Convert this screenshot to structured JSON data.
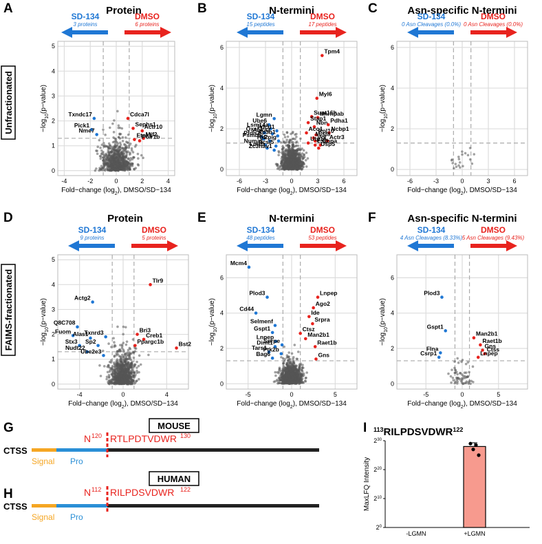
{
  "panel_letters": [
    "A",
    "B",
    "C",
    "D",
    "E",
    "F",
    "G",
    "H",
    "I"
  ],
  "row_labels": {
    "top": "Unfractionated",
    "bottom": "FAIMS-fractionated"
  },
  "axis": {
    "x_label": "Fold−change (log",
    "x_label_sub": "2",
    "x_label_tail": "), DMSO/SD−134",
    "y_label_a": "−log",
    "y_label_sub": "10",
    "y_label_tail": "(p−value)"
  },
  "arrows": {
    "left": "SD-134",
    "right": "DMSO"
  },
  "colors": {
    "blue": "#1f77d4",
    "red": "#e8231e",
    "grey": "#444444",
    "signal": "#f5a623",
    "pro": "#2a8fd6",
    "bar": "#f79a8e"
  },
  "chart_data": [
    {
      "id": "A",
      "type": "scatter",
      "title": "Protein",
      "left_sub": "3 proteins",
      "right_sub": "6 proteins",
      "xlim": [
        -4.5,
        4.5
      ],
      "ylim": [
        -0.2,
        5.2
      ],
      "xticks": [
        -4,
        -2,
        0,
        2,
        4
      ],
      "yticks": [
        0,
        1,
        2,
        3,
        4,
        5
      ],
      "vlines": [
        -1,
        1
      ],
      "hline": 1.3,
      "labeled": [
        {
          "name": "Txndc17",
          "x": -1.7,
          "y": 2.1,
          "c": "b"
        },
        {
          "name": "Pick1",
          "x": -1.9,
          "y": 1.65,
          "c": "b"
        },
        {
          "name": "Nme7",
          "x": -1.5,
          "y": 1.45,
          "c": "b"
        },
        {
          "name": "Cdca7l",
          "x": 0.9,
          "y": 2.1,
          "c": "r"
        },
        {
          "name": "Sephs1",
          "x": 1.3,
          "y": 1.7,
          "c": "r"
        },
        {
          "name": "Actr10",
          "x": 2.0,
          "y": 1.6,
          "c": "r"
        },
        {
          "name": "Mif2",
          "x": 2.1,
          "y": 1.3,
          "c": "r"
        },
        {
          "name": "Etnk1",
          "x": 1.4,
          "y": 1.25,
          "c": "r"
        },
        {
          "name": "Polr1b",
          "x": 1.8,
          "y": 1.2,
          "c": "r"
        }
      ]
    },
    {
      "id": "B",
      "type": "scatter",
      "title": "N-termini",
      "left_sub": "15 peptides",
      "right_sub": "17 peptides",
      "xlim": [
        -7.5,
        7.5
      ],
      "ylim": [
        -0.3,
        6.3
      ],
      "xticks": [
        -6,
        -3,
        0,
        3,
        6
      ],
      "yticks": [
        0,
        2,
        4,
        6
      ],
      "vlines": [
        -1,
        1
      ],
      "hline": 1.3,
      "labeled": [
        {
          "name": "Tpm4",
          "x": 3.5,
          "y": 5.6,
          "c": "r"
        },
        {
          "name": "Myl6",
          "x": 2.9,
          "y": 3.5,
          "c": "r"
        },
        {
          "name": "Supt16h",
          "x": 2.3,
          "y": 2.6,
          "c": "r"
        },
        {
          "name": "Hnrnpab",
          "x": 3.0,
          "y": 2.55,
          "c": "r"
        },
        {
          "name": "Stap1",
          "x": 1.9,
          "y": 2.3,
          "c": "r"
        },
        {
          "name": "Nbn",
          "x": 2.6,
          "y": 2.1,
          "c": "r"
        },
        {
          "name": "Pdha1",
          "x": 4.2,
          "y": 2.2,
          "c": "r"
        },
        {
          "name": "Aco1",
          "x": 1.7,
          "y": 1.8,
          "c": "r"
        },
        {
          "name": "Rpl10",
          "x": 2.8,
          "y": 1.7,
          "c": "r"
        },
        {
          "name": "Ncbp1",
          "x": 4.3,
          "y": 1.8,
          "c": "r"
        },
        {
          "name": "Mlst8",
          "x": 2.5,
          "y": 1.55,
          "c": "r"
        },
        {
          "name": "Vcl",
          "x": 2.7,
          "y": 1.4,
          "c": "r"
        },
        {
          "name": "Actr3",
          "x": 4.1,
          "y": 1.4,
          "c": "r"
        },
        {
          "name": "Utp15",
          "x": 1.9,
          "y": 1.3,
          "c": "r"
        },
        {
          "name": "Esd",
          "x": 2.7,
          "y": 1.2,
          "c": "r"
        },
        {
          "name": "Copa",
          "x": 3.3,
          "y": 1.2,
          "c": "r"
        },
        {
          "name": "Usp5",
          "x": 3.1,
          "y": 1.05,
          "c": "r"
        },
        {
          "name": "Lgmn",
          "x": -2.0,
          "y": 2.5,
          "c": "b"
        },
        {
          "name": "Ube6",
          "x": -2.6,
          "y": 2.2,
          "c": "b"
        },
        {
          "name": "Lsm14a",
          "x": -2.4,
          "y": 2.0,
          "c": "b"
        },
        {
          "name": "Pdcd1",
          "x": -1.7,
          "y": 1.9,
          "c": "b"
        },
        {
          "name": "Oxsr1",
          "x": -3.1,
          "y": 1.8,
          "c": "b"
        },
        {
          "name": "Anxa3",
          "x": -2.2,
          "y": 1.75,
          "c": "b"
        },
        {
          "name": "Ap3b1",
          "x": -1.6,
          "y": 1.65,
          "c": "b"
        },
        {
          "name": "Pfdn2",
          "x": -3.4,
          "y": 1.6,
          "c": "b"
        },
        {
          "name": "Psmb8",
          "x": -3.2,
          "y": 1.5,
          "c": "b"
        },
        {
          "name": "Hk2",
          "x": -2.5,
          "y": 1.4,
          "c": "b"
        },
        {
          "name": "Ppig",
          "x": -1.5,
          "y": 1.4,
          "c": "b"
        },
        {
          "name": "Numa1",
          "x": -3.0,
          "y": 1.2,
          "c": "b"
        },
        {
          "name": "Lmna",
          "x": -2.8,
          "y": 1.05,
          "c": "b"
        },
        {
          "name": "Acsl5",
          "x": -1.8,
          "y": 1.15,
          "c": "b"
        },
        {
          "name": "Zc3hav1",
          "x": -2.0,
          "y": 0.95,
          "c": "b"
        }
      ]
    },
    {
      "id": "C",
      "type": "scatter",
      "title": "Asn-specific N-termini",
      "left_sub": "0 Asn Cleavages (0.0%)",
      "right_sub": "0 Asn Cleavages (0.0%)",
      "xlim": [
        -7.5,
        7.5
      ],
      "ylim": [
        -0.3,
        6.3
      ],
      "xticks": [
        -6,
        -3,
        0,
        3,
        6
      ],
      "yticks": [
        0,
        2,
        4,
        6
      ],
      "vlines": [
        -1,
        1
      ],
      "hline": 1.3,
      "labeled": []
    },
    {
      "id": "D",
      "type": "scatter",
      "title": "Protein",
      "left_sub": "9 proteins",
      "right_sub": "5 proteins",
      "xlim": [
        -6,
        6
      ],
      "ylim": [
        -0.2,
        5.2
      ],
      "xticks": [
        -4,
        0,
        4
      ],
      "yticks": [
        0,
        1,
        2,
        3,
        4,
        5
      ],
      "vlines": [
        -1,
        1
      ],
      "hline": 1.3,
      "labeled": [
        {
          "name": "Tlr9",
          "x": 2.5,
          "y": 4.0,
          "c": "r"
        },
        {
          "name": "Actg2",
          "x": -2.8,
          "y": 3.3,
          "c": "b"
        },
        {
          "name": "Q8C708",
          "x": -4.2,
          "y": 2.3,
          "c": "b"
        },
        {
          "name": "Txnrd3",
          "x": -1.6,
          "y": 1.9,
          "c": "b"
        },
        {
          "name": "Fuom",
          "x": -4.6,
          "y": 1.95,
          "c": "b"
        },
        {
          "name": "Alas1",
          "x": -3.0,
          "y": 1.85,
          "c": "b"
        },
        {
          "name": "Stx3",
          "x": -4.0,
          "y": 1.55,
          "c": "b"
        },
        {
          "name": "Sp2",
          "x": -2.3,
          "y": 1.55,
          "c": "b"
        },
        {
          "name": "Nudt22",
          "x": -3.3,
          "y": 1.3,
          "c": "b"
        },
        {
          "name": "Ube2e3",
          "x": -1.8,
          "y": 1.15,
          "c": "b"
        },
        {
          "name": "Bri3",
          "x": 1.3,
          "y": 2.0,
          "c": "r"
        },
        {
          "name": "Creb1",
          "x": 1.9,
          "y": 1.8,
          "c": "r"
        },
        {
          "name": "Bst2",
          "x": 4.9,
          "y": 1.45,
          "c": "r"
        },
        {
          "name": "Ppargc1b",
          "x": 1.1,
          "y": 1.55,
          "c": "r"
        }
      ]
    },
    {
      "id": "E",
      "type": "scatter",
      "title": "N-termini",
      "left_sub": "48 peptides",
      "right_sub": "53 peptides",
      "xlim": [
        -7.5,
        7.5
      ],
      "ylim": [
        -0.3,
        7.3
      ],
      "xticks": [
        -5,
        0,
        5
      ],
      "yticks": [
        0,
        2,
        4,
        6
      ],
      "vlines": [
        -1,
        1
      ],
      "hline": 1.3,
      "labeled": [
        {
          "name": "Mcm4",
          "x": -4.9,
          "y": 6.6,
          "c": "b"
        },
        {
          "name": "Plod3",
          "x": -2.8,
          "y": 4.9,
          "c": "b"
        },
        {
          "name": "Lnpep",
          "x": 3.0,
          "y": 4.9,
          "c": "r"
        },
        {
          "name": "Ago2",
          "x": 2.5,
          "y": 4.3,
          "c": "r"
        },
        {
          "name": "Cd44",
          "x": -4.1,
          "y": 4.0,
          "c": "b"
        },
        {
          "name": "Ide",
          "x": 2.0,
          "y": 3.8,
          "c": "r"
        },
        {
          "name": "Srpra",
          "x": 2.4,
          "y": 3.4,
          "c": "r"
        },
        {
          "name": "Selmenf",
          "x": -1.9,
          "y": 3.3,
          "c": "b"
        },
        {
          "name": "Gspt1",
          "x": -2.2,
          "y": 2.9,
          "c": "b"
        },
        {
          "name": "Ctsz",
          "x": 1.0,
          "y": 2.85,
          "c": "r"
        },
        {
          "name": "Man2b1",
          "x": 1.6,
          "y": 2.55,
          "c": "r"
        },
        {
          "name": "Lnpep",
          "x": -1.8,
          "y": 2.4,
          "c": "b"
        },
        {
          "name": "Dimt1",
          "x": -1.9,
          "y": 2.1,
          "c": "b"
        },
        {
          "name": "Snrpe",
          "x": -1.1,
          "y": 2.2,
          "c": "b"
        },
        {
          "name": "Raet1b",
          "x": 2.7,
          "y": 2.1,
          "c": "r"
        },
        {
          "name": "Tars1",
          "x": -2.6,
          "y": 1.8,
          "c": "b"
        },
        {
          "name": "Ptk2b",
          "x": -1.2,
          "y": 1.7,
          "c": "b"
        },
        {
          "name": "Bag6",
          "x": -2.2,
          "y": 1.45,
          "c": "b"
        },
        {
          "name": "Gns",
          "x": 2.8,
          "y": 1.4,
          "c": "r"
        }
      ]
    },
    {
      "id": "F",
      "type": "scatter",
      "title": "Asn-specific N-termini",
      "left_sub": "4 Asn Cleavages (8.33%)",
      "right_sub": "5 Asn Cleavages (9.43%)",
      "xlim": [
        -9,
        9
      ],
      "ylim": [
        -0.3,
        7.3
      ],
      "xticks": [
        -5,
        0,
        5
      ],
      "yticks": [
        0,
        2,
        4,
        6
      ],
      "vlines": [
        -1,
        1
      ],
      "hline": 1.3,
      "labeled": [
        {
          "name": "Plod3",
          "x": -2.8,
          "y": 4.9,
          "c": "b"
        },
        {
          "name": "Gspt1",
          "x": -2.3,
          "y": 3.0,
          "c": "b"
        },
        {
          "name": "Man2b1",
          "x": 1.6,
          "y": 2.6,
          "c": "r"
        },
        {
          "name": "Raet1b",
          "x": 2.5,
          "y": 2.2,
          "c": "r"
        },
        {
          "name": "Gns",
          "x": 2.8,
          "y": 1.9,
          "c": "r"
        },
        {
          "name": "Ctss",
          "x": 3.1,
          "y": 1.7,
          "c": "r"
        },
        {
          "name": "Flna",
          "x": -3.0,
          "y": 1.75,
          "c": "b"
        },
        {
          "name": "Csrp1",
          "x": -3.2,
          "y": 1.5,
          "c": "b"
        },
        {
          "name": "Lnpep",
          "x": 2.2,
          "y": 1.5,
          "c": "r"
        }
      ]
    },
    {
      "id": "I",
      "type": "bar",
      "title_pre": "113",
      "title": "RILPDSVDWR",
      "title_post": "122",
      "ylabel": "MaxLFQ Intensity",
      "categories": [
        "-LGMN",
        "+LGMN"
      ],
      "values": [
        0,
        28
      ],
      "points": [
        29,
        27,
        28.5,
        25
      ],
      "yscale": "log2",
      "ylim": [
        0,
        30
      ],
      "yticks": [
        0,
        10,
        20,
        30
      ]
    }
  ],
  "panel_G": {
    "box": "MOUSE",
    "gene": "CTSS",
    "site": "N",
    "site_sup": "120",
    "peptide": "RTLPDTVDWR",
    "peptide_sup": "130",
    "signal": "Signal",
    "pro": "Pro"
  },
  "panel_H": {
    "box": "HUMAN",
    "gene": "CTSS",
    "site": "N",
    "site_sup": "112",
    "peptide": "RILPDSVDWR",
    "peptide_sup": "122",
    "signal": "Signal",
    "pro": "Pro"
  },
  "tick_base": "2"
}
